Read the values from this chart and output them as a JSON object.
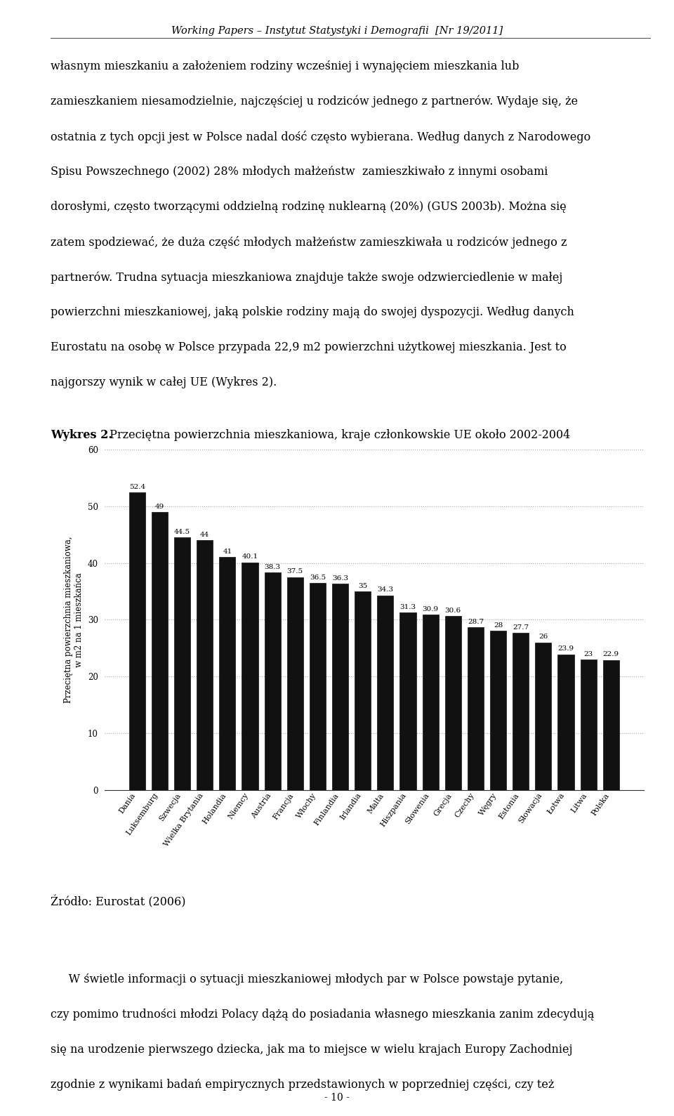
{
  "header": "Working Papers – Instytut Statystyki i Demografii  [Nr 19/2011]",
  "page_number": "- 10 -",
  "p1_lines": [
    "własnym mieszkaniu a założeniem rodziny wcześniej i wynajęciem mieszkania lub",
    "zamieszkaniem niesamodzielnie, najczęściej u rodziców jednego z partnerów. Wydaje się, że",
    "ostatnia z tych opcji jest w Polsce nadal dość często wybierana. Według danych z Narodowego",
    "Spisu Powszechnego (2002) 28% młodych małżeństw  zamieszkiwało z innymi osobami",
    "dorosłymi, często tworzącymi oddzielną rodzinę nuklearną (20%) (GUS 2003b). Można się",
    "zatem spodziewać, że duża część młodych małżeństw zamieszkiwała u rodziców jednego z",
    "partnerów. Trudna sytuacja mieszkaniowa znajduje także swoje odzwierciedlenie w małej",
    "powierzchni mieszkaniowej, jaką polskie rodziny mają do swojej dyspozycji. Według danych",
    "Eurostatu na osobę w Polsce przypada 22,9 m2 powierzchni użytkowej mieszkania. Jest to",
    "najgorszy wynik w całej UE (Wykres 2)."
  ],
  "wykres_label": "Wykres 2.",
  "wykres_title": " Przeciętna powierzchnia mieszkaniowa, kraje członkowskie UE około 2002-2004",
  "source": "Źródło: Eurostat (2006)",
  "p2_lines": [
    "     W świetle informacji o sytuacji mieszkaniowej młodych par w Polsce powstaje pytanie,",
    "czy pomimo trudności młodzi Polacy dążą do posiadania własnego mieszkania zanim zdecydują",
    "się na urodzenie pierwszego dziecka, jak ma to miejsce w wielu krajach Europy Zachodniej",
    "zgodnie z wynikami badań empirycznych przedstawionych w poprzedniej części, czy też"
  ],
  "categories": [
    "Dania",
    "Luksemburg",
    "Szwecja",
    "Wielka Brytania",
    "Holandia",
    "Niemcy",
    "Austria",
    "Francja",
    "Włochy",
    "Finlandia",
    "Irlandia",
    "Malta",
    "Hiszpania",
    "Słowenia",
    "Grecja",
    "Czechy",
    "Węgry",
    "Estonia",
    "Słowacja",
    "Łotwa",
    "Litwa",
    "Polska"
  ],
  "values": [
    52.4,
    49,
    44.5,
    44,
    41,
    40.1,
    38.3,
    37.5,
    36.5,
    36.3,
    35,
    34.3,
    31.3,
    30.9,
    30.6,
    28.7,
    28,
    27.7,
    26,
    23.9,
    23,
    22.9
  ],
  "bar_color": "#111111",
  "ylabel": "Przeciętna powierzchnia mieszkaniowa,\nw m2 na 1 mieszkańca",
  "ylim": [
    0,
    60
  ],
  "yticks": [
    0,
    10,
    20,
    30,
    40,
    50,
    60
  ],
  "grid_color": "#aaaaaa",
  "background_color": "#ffffff",
  "text_color": "#000000",
  "text_fontsize": 11.5,
  "header_fontsize": 10.5,
  "chart_label_fontsize": 8.0,
  "axis_fontsize": 8.5,
  "value_label_fontsize": 7.5
}
